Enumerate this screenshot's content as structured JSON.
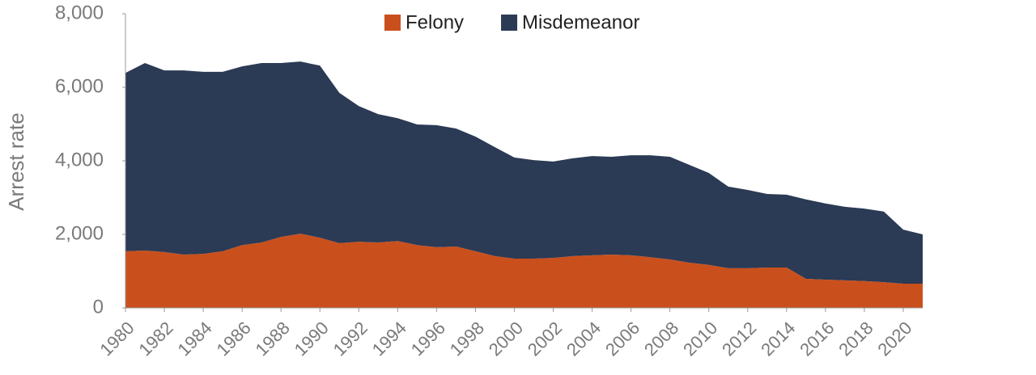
{
  "chart_data": {
    "type": "stacked-area",
    "y_label": "Arrest rate",
    "x": [
      1980,
      1981,
      1982,
      1983,
      1984,
      1985,
      1986,
      1987,
      1988,
      1989,
      1990,
      1991,
      1992,
      1993,
      1994,
      1995,
      1996,
      1997,
      1998,
      1999,
      2000,
      2001,
      2002,
      2003,
      2004,
      2005,
      2006,
      2007,
      2008,
      2009,
      2010,
      2011,
      2012,
      2013,
      2014,
      2015,
      2016,
      2017,
      2018,
      2019,
      2020,
      2021
    ],
    "series": [
      {
        "name": "Felony",
        "color": "#c9501c",
        "values": [
          1540,
          1560,
          1520,
          1450,
          1470,
          1540,
          1710,
          1780,
          1930,
          2020,
          1910,
          1760,
          1800,
          1780,
          1820,
          1710,
          1650,
          1670,
          1540,
          1410,
          1340,
          1340,
          1360,
          1410,
          1430,
          1450,
          1430,
          1380,
          1320,
          1230,
          1170,
          1080,
          1080,
          1100,
          1100,
          790,
          770,
          750,
          730,
          700,
          660,
          660
        ]
      },
      {
        "name": "Misdemeanor",
        "color": "#2b3a55",
        "values": [
          4850,
          5100,
          4940,
          5010,
          4950,
          4880,
          4860,
          4880,
          4730,
          4680,
          4680,
          4090,
          3690,
          3490,
          3340,
          3280,
          3320,
          3210,
          3120,
          2960,
          2750,
          2680,
          2620,
          2660,
          2700,
          2660,
          2720,
          2770,
          2790,
          2660,
          2500,
          2220,
          2130,
          2000,
          1980,
          2160,
          2070,
          2000,
          1970,
          1920,
          1470,
          1340
        ]
      }
    ],
    "xlim": [
      1980,
      2021
    ],
    "xticks": [
      1980,
      1982,
      1984,
      1986,
      1988,
      1990,
      1992,
      1994,
      1996,
      1998,
      2000,
      2002,
      2004,
      2006,
      2008,
      2010,
      2012,
      2014,
      2016,
      2018,
      2020
    ],
    "ylim": [
      0,
      8000
    ],
    "yticks": [
      0,
      {
        "value": 2000,
        "label": "2,000"
      },
      {
        "value": 4000,
        "label": "4,000"
      },
      {
        "value": 6000,
        "label": "6,000"
      },
      {
        "value": 8000,
        "label": "8,000"
      }
    ],
    "legend": "top"
  }
}
